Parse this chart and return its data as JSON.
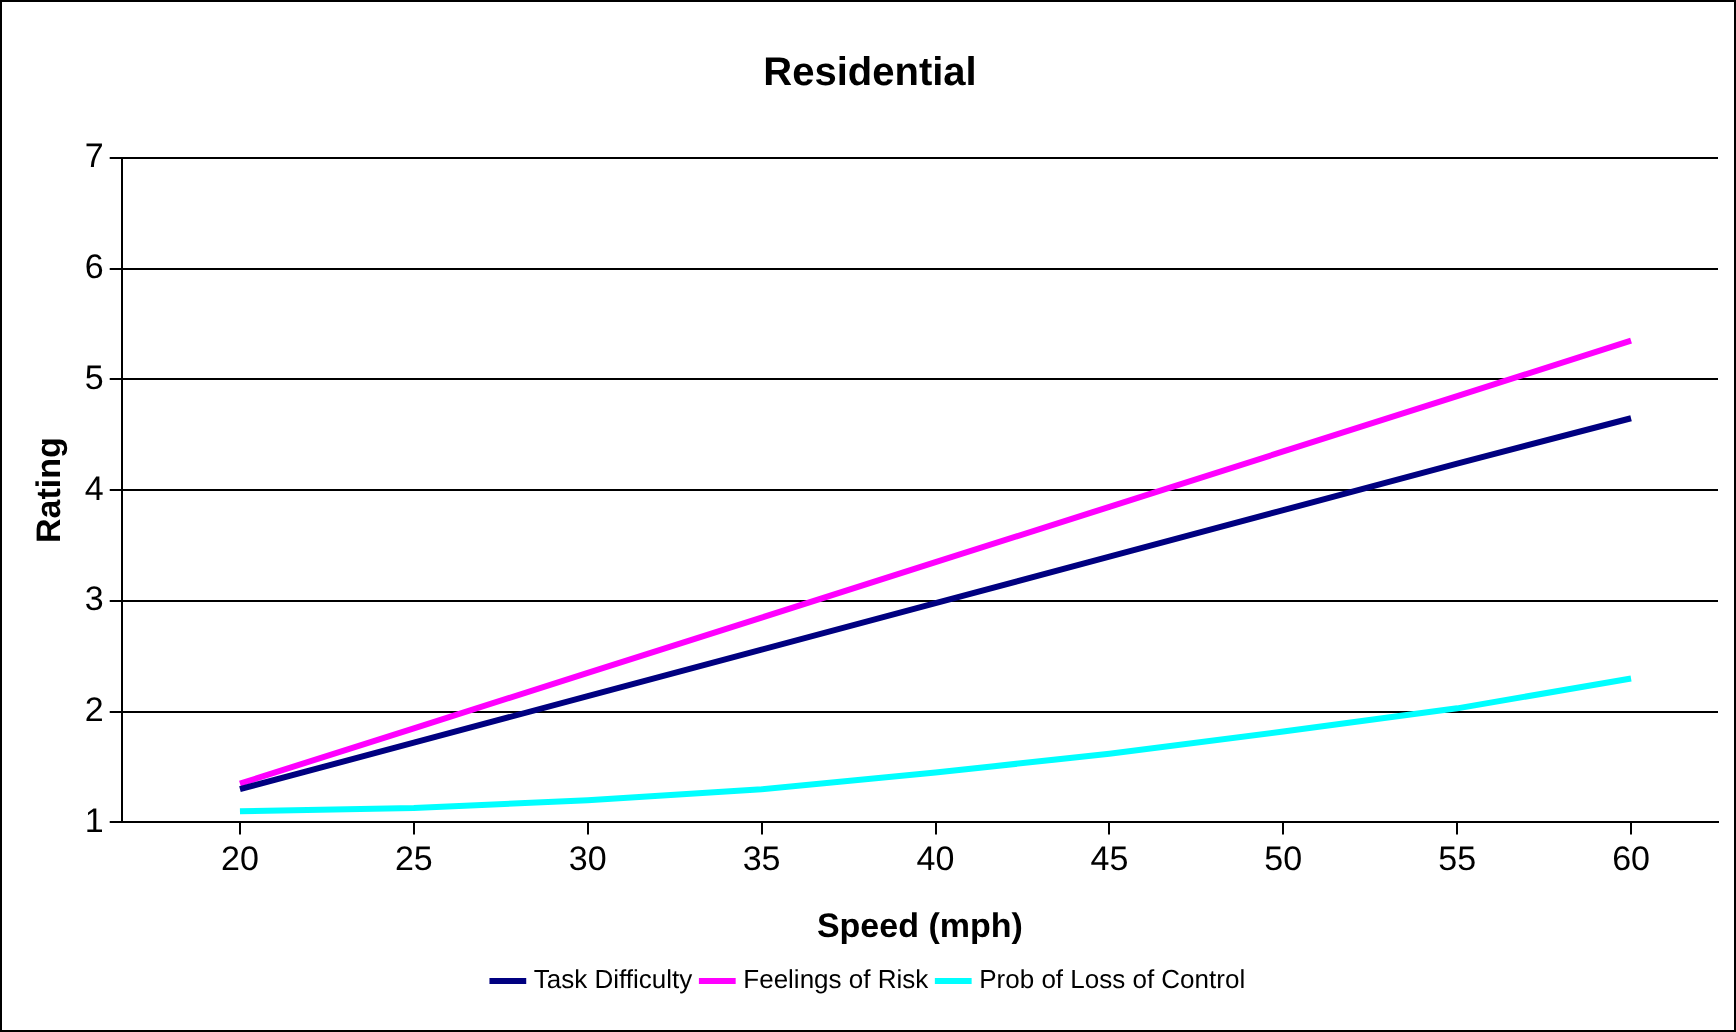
{
  "chart_data": {
    "type": "line",
    "title": "Residential",
    "xlabel": "Speed (mph)",
    "ylabel": "Rating",
    "x": [
      20,
      25,
      30,
      35,
      40,
      45,
      50,
      55,
      60
    ],
    "series": [
      {
        "name": "Task Difficulty",
        "color": "#000080",
        "values": [
          1.3,
          1.72,
          2.14,
          2.56,
          2.98,
          3.4,
          3.82,
          4.24,
          4.65
        ]
      },
      {
        "name": "Feelings of Risk",
        "color": "#ff00ff",
        "values": [
          1.35,
          1.85,
          2.35,
          2.85,
          3.35,
          3.85,
          4.35,
          4.85,
          5.35
        ]
      },
      {
        "name": "Prob of Loss of Control",
        "color": "#00ffff",
        "values": [
          1.1,
          1.13,
          1.2,
          1.3,
          1.45,
          1.62,
          1.82,
          2.03,
          2.3
        ]
      }
    ],
    "xlim": [
      16.6,
      62.5
    ],
    "xticks": [
      20,
      25,
      30,
      35,
      40,
      45,
      50,
      55,
      60
    ],
    "ylim": [
      1,
      7
    ],
    "yticks": [
      1,
      2,
      3,
      4,
      5,
      6,
      7
    ],
    "grid": "y",
    "legend": "bottom",
    "marker": "none",
    "line_style": "solid"
  }
}
